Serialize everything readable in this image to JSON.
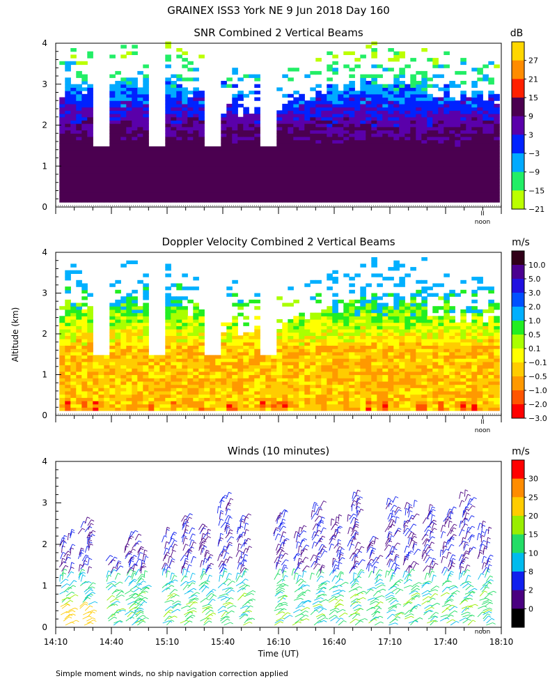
{
  "page": {
    "title": "GRAINEX ISS3 York NE   9 Jun 2018 Day 160",
    "shared_ylabel": "Altitude (km)",
    "footnote": "Simple moment winds, no ship navigation correction applied",
    "noon_label": "noon",
    "noon_marker": "II"
  },
  "chart_data": [
    {
      "type": "heatmap",
      "title": "SNR Combined 2 Vertical Beams",
      "xlabel": "",
      "ylabel": "Altitude (km)",
      "ylim": [
        0,
        4
      ],
      "yticks": [
        "0",
        "1",
        "2",
        "3",
        "4"
      ],
      "xlim": [
        0,
        240
      ],
      "colorbar": {
        "unit": "dB",
        "labels": [
          "27",
          "21",
          "15",
          "9",
          "3",
          "−3",
          "−9",
          "−15",
          "−21"
        ],
        "colors": [
          "#ffd700",
          "#ff8c00",
          "#ff2000",
          "#4b0050",
          "#5a00aa",
          "#0022ff",
          "#00aaff",
          "#22ee66",
          "#bbff00"
        ]
      },
      "gaps_minutes": [
        [
          20,
          28
        ],
        [
          50,
          58
        ],
        [
          80,
          88
        ],
        [
          110,
          118
        ]
      ]
    },
    {
      "type": "heatmap",
      "title": "Doppler Velocity Combined 2 Vertical Beams",
      "xlabel": "",
      "ylabel": "Altitude (km)",
      "ylim": [
        0,
        4
      ],
      "yticks": [
        "0",
        "1",
        "2",
        "3",
        "4"
      ],
      "xlim": [
        0,
        240
      ],
      "colorbar": {
        "unit": "m/s",
        "labels": [
          "10.0",
          "5.0",
          "3.0",
          "2.0",
          "1.0",
          "0.5",
          "0.1",
          "−0.1",
          "−0.5",
          "−1.0",
          "−2.0",
          "−3.0"
        ],
        "colors": [
          "#300018",
          "#4a0090",
          "#2010e0",
          "#0050ff",
          "#00b0ff",
          "#22ee22",
          "#aaff00",
          "#ffff00",
          "#ffcc00",
          "#ff9900",
          "#ff5500",
          "#ff0000"
        ]
      },
      "gaps_minutes": [
        [
          20,
          28
        ],
        [
          50,
          58
        ],
        [
          80,
          88
        ],
        [
          110,
          118
        ]
      ]
    },
    {
      "type": "scatter",
      "title": "Winds (10 minutes)",
      "xlabel": "Time (UT)",
      "ylabel": "Altitude (km)",
      "ylim": [
        0,
        4
      ],
      "yticks": [
        "0",
        "1",
        "2",
        "3",
        "4"
      ],
      "xlim": [
        0,
        240
      ],
      "xticks": [
        "14:10",
        "14:40",
        "15:10",
        "15:40",
        "16:10",
        "16:40",
        "17:10",
        "17:40",
        "18:10"
      ],
      "xtick_minutes": [
        0,
        30,
        60,
        90,
        120,
        150,
        180,
        210,
        240
      ],
      "profile_minutes": [
        5,
        15,
        30,
        40,
        45,
        60,
        70,
        80,
        90,
        100,
        120,
        130,
        140,
        150,
        160,
        170,
        180,
        190,
        200,
        210,
        220,
        230
      ],
      "colorbar": {
        "unit": "m/s",
        "labels": [
          "30",
          "25",
          "20",
          "15",
          "10",
          "8",
          "2",
          "0"
        ],
        "colors": [
          "#ff0000",
          "#ff8c00",
          "#ffcc00",
          "#99ee00",
          "#22dd66",
          "#00bbee",
          "#1020ee",
          "#4a0080",
          "#000000"
        ]
      }
    }
  ]
}
